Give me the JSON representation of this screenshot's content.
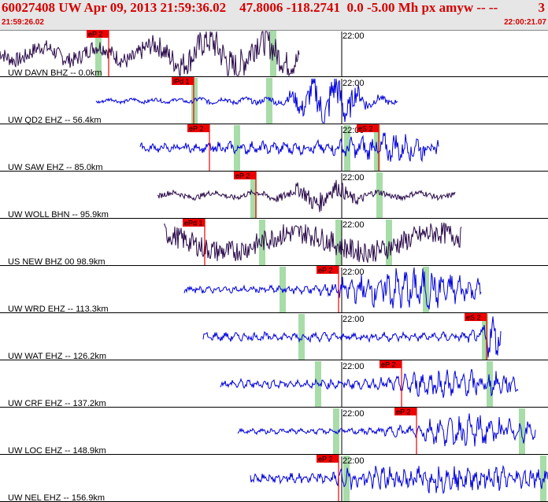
{
  "header": {
    "title": "60027408 UW Apr 09, 2013 21:59:36.02    47.8006 -118.2741  0.0 -5.00 Mh px amyw -- --",
    "page": "3",
    "start_time": "21:59:26.02",
    "end_time": "22:00:21.07"
  },
  "colors": {
    "header_text": "#d40000",
    "trace_blue": "#0000dd",
    "trace_dark": "#2a0a4a",
    "pick": "#ee0000",
    "window": "#a8dca8",
    "divider": "#000000"
  },
  "chart_data": {
    "type": "line",
    "title": "60027408 UW Apr 09, 2013 21:59:36.02",
    "x_unit": "time",
    "x_range": [
      "21:59:26.02",
      "22:00:21.07"
    ],
    "time_marker_label": "22:00",
    "traces": [
      {
        "label": "UW DAVN BHZ -- 0.0km",
        "color": "dark",
        "x_start": 0,
        "x_end": 380,
        "freq": 0.09,
        "amp": 14,
        "picks": [
          {
            "label": "eP 2",
            "x": 138
          }
        ],
        "windows": [
          125,
          347
        ],
        "bursts": [
          {
            "at": 300,
            "width": 90,
            "gain": 2.2
          }
        ]
      },
      {
        "label": "UW QD2 EHZ -- 56.4km",
        "color": "blue",
        "x_start": 122,
        "x_end": 505,
        "freq": 0.22,
        "amp": 3,
        "picks": [
          {
            "label": "iPd 1",
            "x": 246
          }
        ],
        "windows": [
          247,
          342
        ],
        "bursts": [
          {
            "at": 418,
            "width": 40,
            "gain": 8
          }
        ]
      },
      {
        "label": "UW SAW EHZ -- 85.0km",
        "color": "blue",
        "x_start": 178,
        "x_end": 557,
        "freq": 0.45,
        "amp": 5,
        "picks": [
          {
            "label": "eP 2",
            "x": 266
          },
          {
            "label": "eS 2",
            "x": 481
          }
        ],
        "windows": [
          301,
          441,
          479
        ],
        "bursts": [
          {
            "at": 500,
            "width": 60,
            "gain": 2.4
          }
        ]
      },
      {
        "label": "UW WOLL BHN -- 95.9km",
        "color": "dark",
        "x_start": 200,
        "x_end": 578,
        "freq": 0.12,
        "amp": 5,
        "picks": [
          {
            "label": "eP 2",
            "x": 325
          }
        ],
        "windows": [
          322,
          482
        ],
        "bursts": [
          {
            "at": 410,
            "width": 45,
            "gain": 3.6
          }
        ]
      },
      {
        "label": "US NEW BHZ 00 98.9km",
        "color": "dark",
        "x_start": 208,
        "x_end": 586,
        "freq": 0.035,
        "amp": 20,
        "picks": [
          {
            "label": "ePd 1",
            "x": 260
          }
        ],
        "windows": [
          333,
          430,
          494
        ],
        "bursts": []
      },
      {
        "label": "UW WRD EHZ -- 113.3km",
        "color": "blue",
        "x_start": 234,
        "x_end": 611,
        "freq": 0.55,
        "amp": 4,
        "picks": [
          {
            "label": "eP 2",
            "x": 430
          }
        ],
        "windows": [
          359,
          541
        ],
        "bursts": [
          {
            "at": 520,
            "width": 90,
            "gain": 4.2
          }
        ]
      },
      {
        "label": "UW WAT EHZ -- 126.2km",
        "color": "blue",
        "x_start": 258,
        "x_end": 636,
        "freq": 0.5,
        "amp": 5,
        "picks": [
          {
            "label": "eS 2",
            "x": 618
          }
        ],
        "windows": [
          383,
          616
        ],
        "bursts": [
          {
            "at": 625,
            "width": 20,
            "gain": 3.4
          }
        ]
      },
      {
        "label": "UW CRF EHZ -- 137.2km",
        "color": "blue",
        "x_start": 280,
        "x_end": 658,
        "freq": 0.6,
        "amp": 5,
        "picks": [
          {
            "label": "eP 2",
            "x": 510
          }
        ],
        "windows": [
          404,
          622
        ],
        "bursts": [
          {
            "at": 580,
            "width": 90,
            "gain": 2.2
          }
        ]
      },
      {
        "label": "UW LOC EHZ -- 148.9km",
        "color": "blue",
        "x_start": 302,
        "x_end": 680,
        "freq": 0.5,
        "amp": 3,
        "picks": [
          {
            "label": "eP 2",
            "x": 529
          }
        ],
        "windows": [
          427,
          663
        ],
        "bursts": [
          {
            "at": 600,
            "width": 90,
            "gain": 4.2
          }
        ]
      },
      {
        "label": "UW NEL EHZ -- 156.9km",
        "color": "blue",
        "x_start": 318,
        "x_end": 696,
        "freq": 0.7,
        "amp": 5,
        "picks": [
          {
            "label": "eP 2",
            "x": 430
          }
        ],
        "windows": [
          440,
          690
        ],
        "bursts": [
          {
            "at": 560,
            "width": 140,
            "gain": 2.2
          }
        ]
      }
    ]
  }
}
